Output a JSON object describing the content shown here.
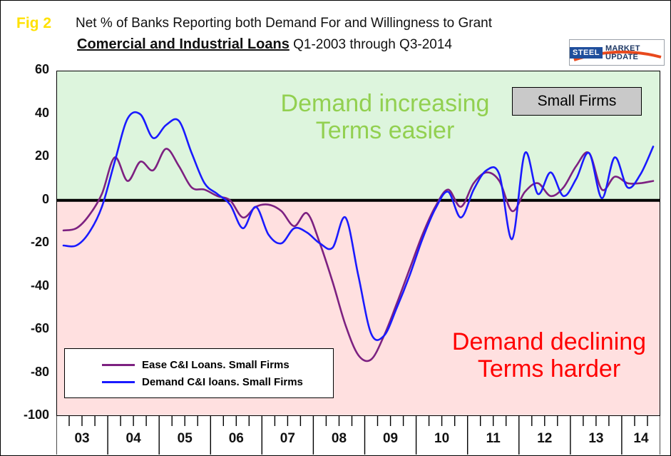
{
  "header": {
    "fig_label": "Fig 2",
    "title_line1": "Net % of Banks Reporting both Demand For and Willingness to Grant",
    "title_line2_bold": "Comercial and Industrial Loans",
    "title_line2_rest": " Q1-2003 through Q3-2014"
  },
  "logo": {
    "steel": "STEEL",
    "rest": "MARKET UPDATE"
  },
  "plot_labels": {
    "small_firms": "Small Firms"
  },
  "annotations": {
    "upper": {
      "line1": "Demand increasing",
      "line2": "Terms easier",
      "color": "#92d050"
    },
    "lower": {
      "line1": "Demand declining",
      "line2": "Terms harder",
      "color": "#ff0000"
    }
  },
  "chart_data": {
    "type": "line",
    "title": "Net % of Banks Reporting both Demand For and Willingness to Grant Comercial and Industrial Loans Q1-2003 through Q3-2014",
    "x_unit": "quarter",
    "x_start": "Q1-2003",
    "x_end": "Q3-2014",
    "years": [
      "03",
      "04",
      "05",
      "06",
      "07",
      "08",
      "09",
      "10",
      "11",
      "12",
      "13",
      "14"
    ],
    "y_ticks": [
      60,
      40,
      20,
      0,
      -20,
      -40,
      -60,
      -80,
      -100
    ],
    "ylim": [
      -100,
      60
    ],
    "zero_line": true,
    "grid": false,
    "legend_position": "bottom-left-inside",
    "background": {
      "above_zero": "#ddf5dd",
      "below_zero": "#ffe0e0"
    },
    "series": [
      {
        "name": "Ease C&I Loans. Small Firms",
        "color": "#7d2181",
        "values": [
          -14,
          -13,
          -7,
          3,
          20,
          9,
          18,
          14,
          24,
          16,
          6,
          5,
          2,
          0,
          -8,
          -3,
          -2,
          -5,
          -12,
          -6,
          -20,
          -38,
          -58,
          -72,
          -74,
          -63,
          -48,
          -32,
          -16,
          -3,
          5,
          -3,
          8,
          13,
          9,
          -5,
          4,
          8,
          2,
          6,
          16,
          22,
          5,
          11,
          8,
          8,
          9
        ]
      },
      {
        "name": "Demand C&I loans. Small Firms",
        "color": "#1a1aff",
        "values": [
          -21,
          -21,
          -15,
          -3,
          18,
          38,
          40,
          29,
          35,
          37,
          22,
          8,
          3,
          -2,
          -13,
          -3,
          -16,
          -20,
          -13,
          -15,
          -20,
          -22,
          -8,
          -35,
          -62,
          -63,
          -50,
          -35,
          -18,
          -4,
          4,
          -8,
          5,
          14,
          12,
          -18,
          22,
          3,
          13,
          2,
          10,
          22,
          1,
          20,
          6,
          12,
          25
        ]
      }
    ]
  }
}
